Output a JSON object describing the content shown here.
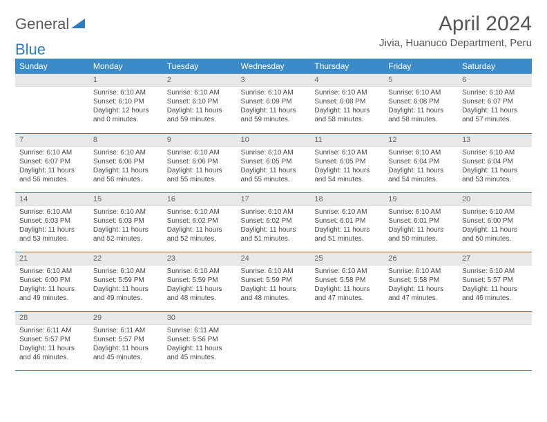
{
  "logo": {
    "text1": "General",
    "text2": "Blue"
  },
  "title": "April 2024",
  "location": "Jivia, Huanuco Department, Peru",
  "colors": {
    "header_bg": "#3b8bc9",
    "header_text": "#ffffff",
    "daynum_bg": "#e8e8e8",
    "rule": "#2f7bbf",
    "text": "#444444"
  },
  "weekdays": [
    "Sunday",
    "Monday",
    "Tuesday",
    "Wednesday",
    "Thursday",
    "Friday",
    "Saturday"
  ],
  "weeks": [
    [
      null,
      {
        "n": "1",
        "sunrise": "6:10 AM",
        "sunset": "6:10 PM",
        "daylight": "12 hours and 0 minutes."
      },
      {
        "n": "2",
        "sunrise": "6:10 AM",
        "sunset": "6:10 PM",
        "daylight": "11 hours and 59 minutes."
      },
      {
        "n": "3",
        "sunrise": "6:10 AM",
        "sunset": "6:09 PM",
        "daylight": "11 hours and 59 minutes."
      },
      {
        "n": "4",
        "sunrise": "6:10 AM",
        "sunset": "6:08 PM",
        "daylight": "11 hours and 58 minutes."
      },
      {
        "n": "5",
        "sunrise": "6:10 AM",
        "sunset": "6:08 PM",
        "daylight": "11 hours and 58 minutes."
      },
      {
        "n": "6",
        "sunrise": "6:10 AM",
        "sunset": "6:07 PM",
        "daylight": "11 hours and 57 minutes."
      }
    ],
    [
      {
        "n": "7",
        "sunrise": "6:10 AM",
        "sunset": "6:07 PM",
        "daylight": "11 hours and 56 minutes."
      },
      {
        "n": "8",
        "sunrise": "6:10 AM",
        "sunset": "6:06 PM",
        "daylight": "11 hours and 56 minutes."
      },
      {
        "n": "9",
        "sunrise": "6:10 AM",
        "sunset": "6:06 PM",
        "daylight": "11 hours and 55 minutes."
      },
      {
        "n": "10",
        "sunrise": "6:10 AM",
        "sunset": "6:05 PM",
        "daylight": "11 hours and 55 minutes."
      },
      {
        "n": "11",
        "sunrise": "6:10 AM",
        "sunset": "6:05 PM",
        "daylight": "11 hours and 54 minutes."
      },
      {
        "n": "12",
        "sunrise": "6:10 AM",
        "sunset": "6:04 PM",
        "daylight": "11 hours and 54 minutes."
      },
      {
        "n": "13",
        "sunrise": "6:10 AM",
        "sunset": "6:04 PM",
        "daylight": "11 hours and 53 minutes."
      }
    ],
    [
      {
        "n": "14",
        "sunrise": "6:10 AM",
        "sunset": "6:03 PM",
        "daylight": "11 hours and 53 minutes."
      },
      {
        "n": "15",
        "sunrise": "6:10 AM",
        "sunset": "6:03 PM",
        "daylight": "11 hours and 52 minutes."
      },
      {
        "n": "16",
        "sunrise": "6:10 AM",
        "sunset": "6:02 PM",
        "daylight": "11 hours and 52 minutes."
      },
      {
        "n": "17",
        "sunrise": "6:10 AM",
        "sunset": "6:02 PM",
        "daylight": "11 hours and 51 minutes."
      },
      {
        "n": "18",
        "sunrise": "6:10 AM",
        "sunset": "6:01 PM",
        "daylight": "11 hours and 51 minutes."
      },
      {
        "n": "19",
        "sunrise": "6:10 AM",
        "sunset": "6:01 PM",
        "daylight": "11 hours and 50 minutes."
      },
      {
        "n": "20",
        "sunrise": "6:10 AM",
        "sunset": "6:00 PM",
        "daylight": "11 hours and 50 minutes."
      }
    ],
    [
      {
        "n": "21",
        "sunrise": "6:10 AM",
        "sunset": "6:00 PM",
        "daylight": "11 hours and 49 minutes."
      },
      {
        "n": "22",
        "sunrise": "6:10 AM",
        "sunset": "5:59 PM",
        "daylight": "11 hours and 49 minutes."
      },
      {
        "n": "23",
        "sunrise": "6:10 AM",
        "sunset": "5:59 PM",
        "daylight": "11 hours and 48 minutes."
      },
      {
        "n": "24",
        "sunrise": "6:10 AM",
        "sunset": "5:59 PM",
        "daylight": "11 hours and 48 minutes."
      },
      {
        "n": "25",
        "sunrise": "6:10 AM",
        "sunset": "5:58 PM",
        "daylight": "11 hours and 47 minutes."
      },
      {
        "n": "26",
        "sunrise": "6:10 AM",
        "sunset": "5:58 PM",
        "daylight": "11 hours and 47 minutes."
      },
      {
        "n": "27",
        "sunrise": "6:10 AM",
        "sunset": "5:57 PM",
        "daylight": "11 hours and 46 minutes."
      }
    ],
    [
      {
        "n": "28",
        "sunrise": "6:11 AM",
        "sunset": "5:57 PM",
        "daylight": "11 hours and 46 minutes."
      },
      {
        "n": "29",
        "sunrise": "6:11 AM",
        "sunset": "5:57 PM",
        "daylight": "11 hours and 45 minutes."
      },
      {
        "n": "30",
        "sunrise": "6:11 AM",
        "sunset": "5:56 PM",
        "daylight": "11 hours and 45 minutes."
      },
      null,
      null,
      null,
      null
    ]
  ],
  "labels": {
    "sunrise": "Sunrise:",
    "sunset": "Sunset:",
    "daylight": "Daylight:"
  }
}
